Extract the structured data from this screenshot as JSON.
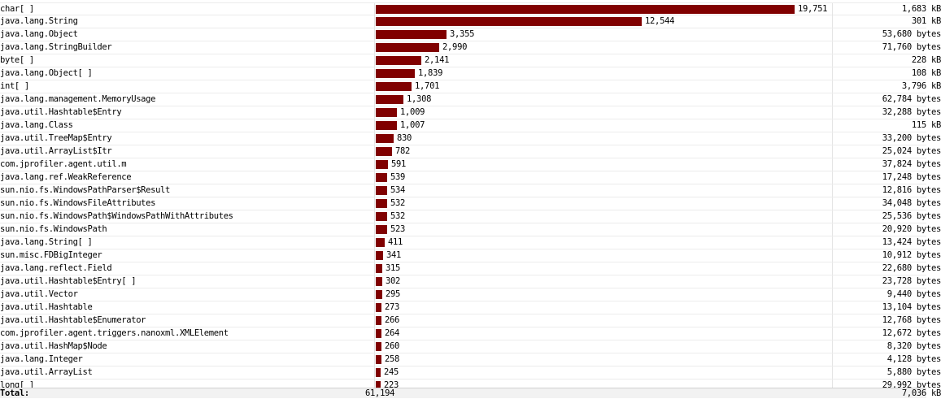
{
  "rows": [
    {
      "name": "char[ ]",
      "count": "19,751",
      "count_value": 19751,
      "size": "1,683 kB"
    },
    {
      "name": "java.lang.String",
      "count": "12,544",
      "count_value": 12544,
      "size": "301 kB"
    },
    {
      "name": "java.lang.Object",
      "count": "3,355",
      "count_value": 3355,
      "size": "53,680 bytes"
    },
    {
      "name": "java.lang.StringBuilder",
      "count": "2,990",
      "count_value": 2990,
      "size": "71,760 bytes"
    },
    {
      "name": "byte[ ]",
      "count": "2,141",
      "count_value": 2141,
      "size": "228 kB"
    },
    {
      "name": "java.lang.Object[ ]",
      "count": "1,839",
      "count_value": 1839,
      "size": "108 kB"
    },
    {
      "name": "int[ ]",
      "count": "1,701",
      "count_value": 1701,
      "size": "3,796 kB"
    },
    {
      "name": "java.lang.management.MemoryUsage",
      "count": "1,308",
      "count_value": 1308,
      "size": "62,784 bytes"
    },
    {
      "name": "java.util.Hashtable$Entry",
      "count": "1,009",
      "count_value": 1009,
      "size": "32,288 bytes"
    },
    {
      "name": "java.lang.Class",
      "count": "1,007",
      "count_value": 1007,
      "size": "115 kB"
    },
    {
      "name": "java.util.TreeMap$Entry",
      "count": "830",
      "count_value": 830,
      "size": "33,200 bytes"
    },
    {
      "name": "java.util.ArrayList$Itr",
      "count": "782",
      "count_value": 782,
      "size": "25,024 bytes"
    },
    {
      "name": "com.jprofiler.agent.util.m",
      "count": "591",
      "count_value": 591,
      "size": "37,824 bytes"
    },
    {
      "name": "java.lang.ref.WeakReference",
      "count": "539",
      "count_value": 539,
      "size": "17,248 bytes"
    },
    {
      "name": "sun.nio.fs.WindowsPathParser$Result",
      "count": "534",
      "count_value": 534,
      "size": "12,816 bytes"
    },
    {
      "name": "sun.nio.fs.WindowsFileAttributes",
      "count": "532",
      "count_value": 532,
      "size": "34,048 bytes"
    },
    {
      "name": "sun.nio.fs.WindowsPath$WindowsPathWithAttributes",
      "count": "532",
      "count_value": 532,
      "size": "25,536 bytes"
    },
    {
      "name": "sun.nio.fs.WindowsPath",
      "count": "523",
      "count_value": 523,
      "size": "20,920 bytes"
    },
    {
      "name": "java.lang.String[ ]",
      "count": "411",
      "count_value": 411,
      "size": "13,424 bytes"
    },
    {
      "name": "sun.misc.FDBigInteger",
      "count": "341",
      "count_value": 341,
      "size": "10,912 bytes"
    },
    {
      "name": "java.lang.reflect.Field",
      "count": "315",
      "count_value": 315,
      "size": "22,680 bytes"
    },
    {
      "name": "java.util.Hashtable$Entry[ ]",
      "count": "302",
      "count_value": 302,
      "size": "23,728 bytes"
    },
    {
      "name": "java.util.Vector",
      "count": "295",
      "count_value": 295,
      "size": "9,440 bytes"
    },
    {
      "name": "java.util.Hashtable",
      "count": "273",
      "count_value": 273,
      "size": "13,104 bytes"
    },
    {
      "name": "java.util.Hashtable$Enumerator",
      "count": "266",
      "count_value": 266,
      "size": "12,768 bytes"
    },
    {
      "name": "com.jprofiler.agent.triggers.nanoxml.XMLElement",
      "count": "264",
      "count_value": 264,
      "size": "12,672 bytes"
    },
    {
      "name": "java.util.HashMap$Node",
      "count": "260",
      "count_value": 260,
      "size": "8,320 bytes"
    },
    {
      "name": "java.lang.Integer",
      "count": "258",
      "count_value": 258,
      "size": "4,128 bytes"
    },
    {
      "name": "java.util.ArrayList",
      "count": "245",
      "count_value": 245,
      "size": "5,880 bytes"
    },
    {
      "name": "long[ ]",
      "count": "223",
      "count_value": 223,
      "size": "29,992 bytes"
    }
  ],
  "total": {
    "label": "Total:",
    "count": "61,194",
    "size": "7,036 kB"
  },
  "colors": {
    "bar": "#800000"
  }
}
